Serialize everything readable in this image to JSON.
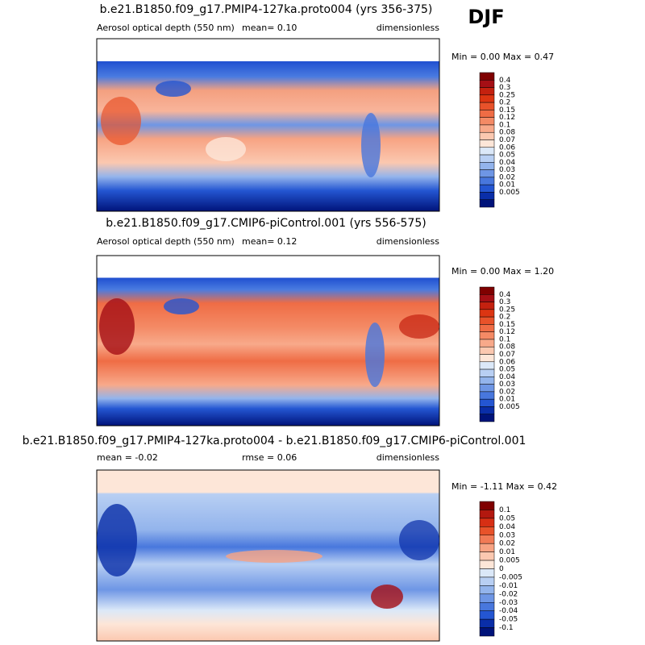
{
  "season": "DJF",
  "panels": [
    {
      "title": "b.e21.B1850.f09_g17.PMIP4-127ka.proto004 (yrs 356-375)",
      "left_label": "Aerosol optical depth (550 nm)",
      "center_label": "mean=  0.10",
      "right_label": "dimensionless",
      "minmax": "Min =  0.00 Max =  0.47",
      "colorbar": {
        "labels": [
          0.4,
          0.3,
          0.25,
          0.2,
          0.15,
          0.12,
          0.1,
          0.08,
          0.07,
          0.06,
          0.05,
          0.04,
          0.03,
          0.02,
          0.01,
          0.005
        ],
        "colors": [
          "#7f0000",
          "#a50f15",
          "#c4210f",
          "#dc3512",
          "#e8522a",
          "#ef6c45",
          "#f48a65",
          "#f8a98a",
          "#fbc8b0",
          "#fde6d8",
          "#dbe8f8",
          "#b8cff3",
          "#93b4ec",
          "#6e96e5",
          "#4877dd",
          "#2456d2",
          "#0a2ea8",
          "#00137a"
        ]
      }
    },
    {
      "title": "b.e21.B1850.f09_g17.CMIP6-piControl.001 (yrs 556-575)",
      "left_label": "Aerosol optical depth (550 nm)",
      "center_label": "mean=  0.12",
      "right_label": "dimensionless",
      "minmax": "Min =  0.00 Max =  1.20",
      "colorbar": {
        "labels": [
          0.4,
          0.3,
          0.25,
          0.2,
          0.15,
          0.12,
          0.1,
          0.08,
          0.07,
          0.06,
          0.05,
          0.04,
          0.03,
          0.02,
          0.01,
          0.005
        ],
        "colors": [
          "#7f0000",
          "#a50f15",
          "#c4210f",
          "#dc3512",
          "#e8522a",
          "#ef6c45",
          "#f48a65",
          "#f8a98a",
          "#fbc8b0",
          "#fde6d8",
          "#dbe8f8",
          "#b8cff3",
          "#93b4ec",
          "#6e96e5",
          "#4877dd",
          "#2456d2",
          "#0a2ea8",
          "#00137a"
        ]
      }
    },
    {
      "title": "b.e21.B1850.f09_g17.PMIP4-127ka.proto004 - b.e21.B1850.f09_g17.CMIP6-piControl.001",
      "left_label": "mean =  -0.02",
      "center_label": "rmse =  0.06",
      "right_label": "dimensionless",
      "minmax": "Min =  -1.11 Max =  0.42",
      "colorbar": {
        "labels": [
          0.1,
          0.05,
          0.04,
          0.03,
          0.02,
          0.01,
          0.005,
          0,
          -0.005,
          -0.01,
          -0.02,
          -0.03,
          -0.04,
          -0.05,
          -0.1
        ],
        "colors": [
          "#7f0000",
          "#b3180f",
          "#d72f14",
          "#e8522a",
          "#f17a56",
          "#f7a383",
          "#fbc8b0",
          "#fde6d8",
          "#dbe8f8",
          "#b8cff3",
          "#93b4ec",
          "#6e96e5",
          "#4877dd",
          "#2456d2",
          "#0a2ea8",
          "#00137a"
        ]
      }
    }
  ]
}
